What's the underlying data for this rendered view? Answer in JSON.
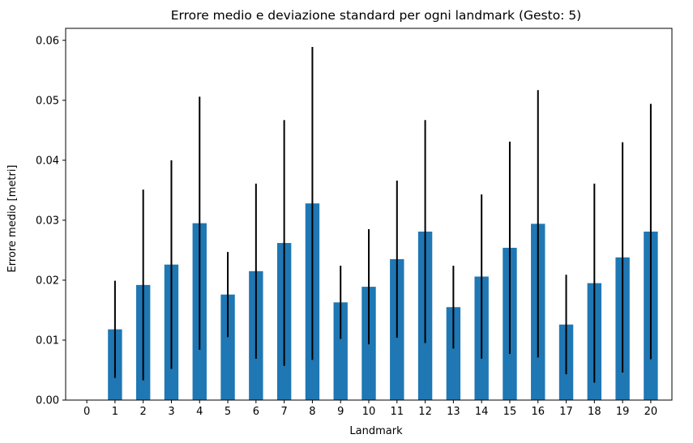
{
  "chart_data": {
    "type": "bar",
    "title": "Errore medio e deviazione standard per ogni landmark (Gesto: 5)",
    "xlabel": "Landmark",
    "ylabel": "Errore medio [metri]",
    "categories": [
      "0",
      "1",
      "2",
      "3",
      "4",
      "5",
      "6",
      "7",
      "8",
      "9",
      "10",
      "11",
      "12",
      "13",
      "14",
      "15",
      "16",
      "17",
      "18",
      "19",
      "20"
    ],
    "values": [
      0,
      0.0118,
      0.0192,
      0.0226,
      0.0295,
      0.0176,
      0.0215,
      0.0262,
      0.0328,
      0.0163,
      0.0189,
      0.0235,
      0.0281,
      0.0155,
      0.0206,
      0.0254,
      0.0294,
      0.0126,
      0.0195,
      0.0238,
      0.0281
    ],
    "std": [
      0,
      0.0081,
      0.0159,
      0.0174,
      0.0211,
      0.0071,
      0.0146,
      0.0205,
      0.0261,
      0.0061,
      0.0096,
      0.0131,
      0.0186,
      0.0069,
      0.0137,
      0.0177,
      0.0223,
      0.0083,
      0.0166,
      0.0192,
      0.0213
    ],
    "ylim": [
      0,
      0.062
    ],
    "yticks": [
      "0.00",
      "0.01",
      "0.02",
      "0.03",
      "0.04",
      "0.05",
      "0.06"
    ],
    "bar_color": "#1f77b4",
    "error_color": "#000000",
    "grid": false,
    "legend": false
  }
}
